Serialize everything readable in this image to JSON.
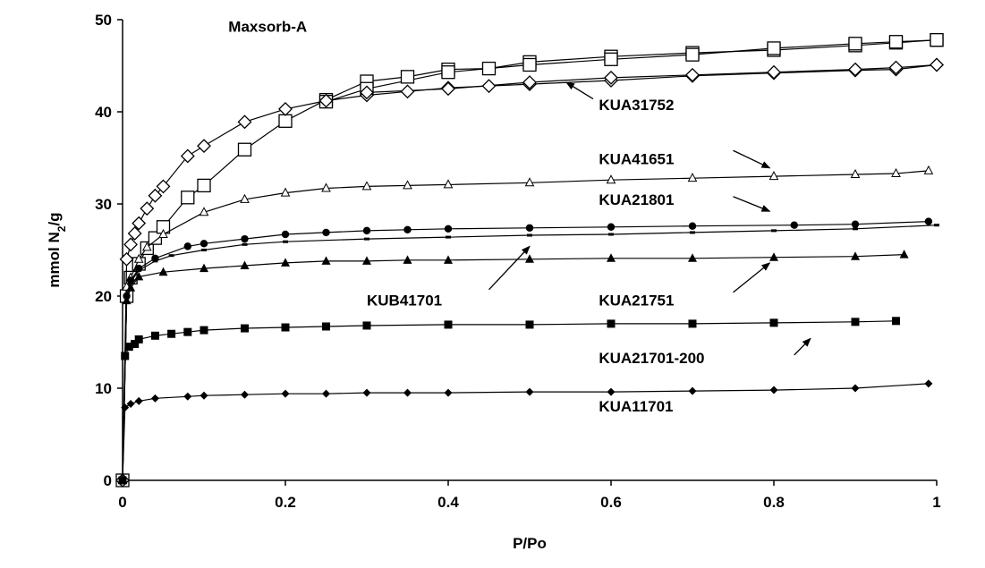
{
  "chart_data": {
    "type": "line",
    "xlabel": "P/Po",
    "ylabel": "mmol N2/g",
    "xlim": [
      0,
      1
    ],
    "ylim": [
      0,
      50
    ],
    "x_ticks": [
      "0",
      "0.2",
      "0.4",
      "0.6",
      "0.8",
      "1"
    ],
    "y_ticks": [
      "0",
      "10",
      "20",
      "30",
      "40",
      "50"
    ],
    "grid": false,
    "legend": "none",
    "series": [
      {
        "name": "Maxsorb-A",
        "marker": "open-square",
        "points": [
          [
            0,
            0
          ],
          [
            0.005,
            20
          ],
          [
            0.01,
            22
          ],
          [
            0.02,
            23.5
          ],
          [
            0.03,
            25.2
          ],
          [
            0.04,
            26.3
          ],
          [
            0.05,
            27.5
          ],
          [
            0.08,
            30.7
          ],
          [
            0.1,
            32
          ],
          [
            0.15,
            35.9
          ],
          [
            0.2,
            39
          ],
          [
            0.25,
            41.3
          ],
          [
            0.3,
            43.3
          ],
          [
            0.35,
            43.8
          ],
          [
            0.4,
            44.6
          ],
          [
            0.45,
            44.7
          ],
          [
            0.5,
            45.4
          ],
          [
            0.6,
            46
          ],
          [
            0.7,
            46.4
          ],
          [
            0.8,
            46.7
          ],
          [
            0.9,
            47.2
          ],
          [
            0.95,
            47.5
          ],
          [
            1.0,
            47.8
          ]
        ],
        "branch2": [
          [
            0.25,
            41.1
          ],
          [
            0.3,
            42.5
          ],
          [
            0.4,
            44.3
          ],
          [
            0.5,
            45.1
          ],
          [
            0.6,
            45.7
          ],
          [
            0.7,
            46.2
          ],
          [
            0.8,
            46.9
          ],
          [
            0.9,
            47.4
          ],
          [
            0.95,
            47.6
          ],
          [
            1.0,
            47.8
          ]
        ]
      },
      {
        "name": "KUA31752",
        "marker": "open-diamond",
        "points": [
          [
            0,
            0
          ],
          [
            0.005,
            24
          ],
          [
            0.01,
            25.6
          ],
          [
            0.015,
            26.8
          ],
          [
            0.02,
            27.9
          ],
          [
            0.03,
            29.5
          ],
          [
            0.04,
            30.9
          ],
          [
            0.05,
            31.9
          ],
          [
            0.08,
            35.2
          ],
          [
            0.1,
            36.3
          ],
          [
            0.15,
            38.9
          ],
          [
            0.2,
            40.3
          ],
          [
            0.25,
            41.2
          ],
          [
            0.3,
            41.8
          ],
          [
            0.35,
            42.2
          ],
          [
            0.4,
            42.6
          ],
          [
            0.45,
            42.8
          ],
          [
            0.5,
            43.0
          ],
          [
            0.6,
            43.4
          ],
          [
            0.7,
            43.9
          ],
          [
            0.8,
            44.2
          ],
          [
            0.9,
            44.5
          ],
          [
            0.95,
            44.6
          ],
          [
            1.0,
            45.1
          ]
        ],
        "branch2": [
          [
            0.3,
            42.1
          ],
          [
            0.4,
            42.5
          ],
          [
            0.5,
            43.2
          ],
          [
            0.6,
            43.7
          ],
          [
            0.7,
            44.0
          ],
          [
            0.8,
            44.3
          ],
          [
            0.9,
            44.6
          ],
          [
            0.95,
            44.8
          ],
          [
            1.0,
            45.1
          ]
        ]
      },
      {
        "name": "KUA41651",
        "marker": "open-triangle",
        "points": [
          [
            0,
            0
          ],
          [
            0.005,
            21
          ],
          [
            0.01,
            22
          ],
          [
            0.02,
            24
          ],
          [
            0.03,
            25.3
          ],
          [
            0.05,
            26.7
          ],
          [
            0.1,
            29.1
          ],
          [
            0.15,
            30.5
          ],
          [
            0.2,
            31.2
          ],
          [
            0.25,
            31.7
          ],
          [
            0.3,
            31.9
          ],
          [
            0.35,
            32
          ],
          [
            0.4,
            32.1
          ],
          [
            0.5,
            32.3
          ],
          [
            0.6,
            32.6
          ],
          [
            0.7,
            32.8
          ],
          [
            0.8,
            33.0
          ],
          [
            0.9,
            33.2
          ],
          [
            0.95,
            33.3
          ],
          [
            0.99,
            33.6
          ]
        ]
      },
      {
        "name": "KUA21801",
        "marker": "filled-circle",
        "points": [
          [
            0,
            0
          ],
          [
            0.005,
            20
          ],
          [
            0.01,
            21.7
          ],
          [
            0.02,
            23
          ],
          [
            0.04,
            24.1
          ],
          [
            0.08,
            25.4
          ],
          [
            0.1,
            25.7
          ],
          [
            0.15,
            26.2
          ],
          [
            0.2,
            26.7
          ],
          [
            0.25,
            26.9
          ],
          [
            0.3,
            27.1
          ],
          [
            0.35,
            27.2
          ],
          [
            0.4,
            27.3
          ],
          [
            0.5,
            27.4
          ],
          [
            0.6,
            27.5
          ],
          [
            0.7,
            27.6
          ],
          [
            0.825,
            27.7
          ],
          [
            0.9,
            27.8
          ],
          [
            0.99,
            28.1
          ]
        ]
      },
      {
        "name": "KUB41701",
        "marker": "small-dash",
        "points": [
          [
            0,
            0
          ],
          [
            0.005,
            19.8
          ],
          [
            0.01,
            21.5
          ],
          [
            0.02,
            22.8
          ],
          [
            0.04,
            23.8
          ],
          [
            0.06,
            24.4
          ],
          [
            0.1,
            25
          ],
          [
            0.15,
            25.6
          ],
          [
            0.2,
            25.9
          ],
          [
            0.3,
            26.2
          ],
          [
            0.4,
            26.4
          ],
          [
            0.5,
            26.6
          ],
          [
            0.6,
            26.7
          ],
          [
            0.7,
            26.9
          ],
          [
            0.8,
            27.1
          ],
          [
            0.9,
            27.3
          ],
          [
            1.0,
            27.7
          ]
        ]
      },
      {
        "name": "KUA21751",
        "marker": "filled-triangle",
        "points": [
          [
            0,
            0
          ],
          [
            0.005,
            19.5
          ],
          [
            0.01,
            20.9
          ],
          [
            0.02,
            22.1
          ],
          [
            0.05,
            22.6
          ],
          [
            0.1,
            23
          ],
          [
            0.15,
            23.3
          ],
          [
            0.2,
            23.6
          ],
          [
            0.25,
            23.8
          ],
          [
            0.3,
            23.8
          ],
          [
            0.35,
            23.9
          ],
          [
            0.4,
            23.9
          ],
          [
            0.5,
            24
          ],
          [
            0.6,
            24.1
          ],
          [
            0.7,
            24.1
          ],
          [
            0.8,
            24.2
          ],
          [
            0.9,
            24.3
          ],
          [
            0.96,
            24.5
          ]
        ]
      },
      {
        "name": "KUA21701-200",
        "marker": "filled-square",
        "points": [
          [
            0,
            0
          ],
          [
            0.003,
            13.5
          ],
          [
            0.008,
            14.5
          ],
          [
            0.015,
            14.8
          ],
          [
            0.02,
            15.3
          ],
          [
            0.04,
            15.7
          ],
          [
            0.06,
            15.9
          ],
          [
            0.08,
            16.1
          ],
          [
            0.1,
            16.3
          ],
          [
            0.15,
            16.5
          ],
          [
            0.2,
            16.6
          ],
          [
            0.25,
            16.7
          ],
          [
            0.3,
            16.8
          ],
          [
            0.4,
            16.9
          ],
          [
            0.5,
            16.9
          ],
          [
            0.6,
            17.0
          ],
          [
            0.7,
            17.0
          ],
          [
            0.8,
            17.1
          ],
          [
            0.9,
            17.2
          ],
          [
            0.95,
            17.3
          ]
        ]
      },
      {
        "name": "KUA11701",
        "marker": "filled-diamond",
        "points": [
          [
            0,
            0
          ],
          [
            0.003,
            7.9
          ],
          [
            0.01,
            8.3
          ],
          [
            0.02,
            8.6
          ],
          [
            0.04,
            8.9
          ],
          [
            0.08,
            9.1
          ],
          [
            0.1,
            9.2
          ],
          [
            0.15,
            9.3
          ],
          [
            0.2,
            9.4
          ],
          [
            0.25,
            9.4
          ],
          [
            0.3,
            9.5
          ],
          [
            0.35,
            9.5
          ],
          [
            0.4,
            9.5
          ],
          [
            0.5,
            9.6
          ],
          [
            0.6,
            9.6
          ],
          [
            0.7,
            9.7
          ],
          [
            0.8,
            9.8
          ],
          [
            0.9,
            10.0
          ],
          [
            0.99,
            10.5
          ]
        ]
      }
    ],
    "annotations": [
      {
        "text": "Maxsorb-A",
        "at": [
          0.13,
          48.7
        ],
        "arrow": null
      },
      {
        "text": "KUA31752",
        "at": [
          0.585,
          40.2
        ],
        "arrow": {
          "from": [
            0.578,
            41.4
          ],
          "to": [
            0.545,
            43.2
          ]
        }
      },
      {
        "text": "KUA41651",
        "at": [
          0.585,
          34.3
        ],
        "arrow": {
          "from": [
            0.75,
            35.8
          ],
          "to": [
            0.795,
            33.9
          ]
        }
      },
      {
        "text": "KUA21801",
        "at": [
          0.585,
          29.9
        ],
        "arrow": {
          "from": [
            0.75,
            30.8
          ],
          "to": [
            0.795,
            29.2
          ]
        }
      },
      {
        "text": "KUB41701",
        "at": [
          0.3,
          19.0
        ],
        "arrow": {
          "from": [
            0.45,
            20.7
          ],
          "to": [
            0.5,
            25.4
          ]
        }
      },
      {
        "text": "KUA21751",
        "at": [
          0.585,
          19.0
        ],
        "arrow": {
          "from": [
            0.75,
            20.4
          ],
          "to": [
            0.795,
            23.6
          ]
        }
      },
      {
        "text": "KUA21701-200",
        "at": [
          0.585,
          12.7
        ],
        "arrow": {
          "from": [
            0.825,
            13.6
          ],
          "to": [
            0.845,
            15.4
          ]
        }
      },
      {
        "text": "KUA11701",
        "at": [
          0.585,
          7.5
        ],
        "arrow": null
      }
    ]
  }
}
